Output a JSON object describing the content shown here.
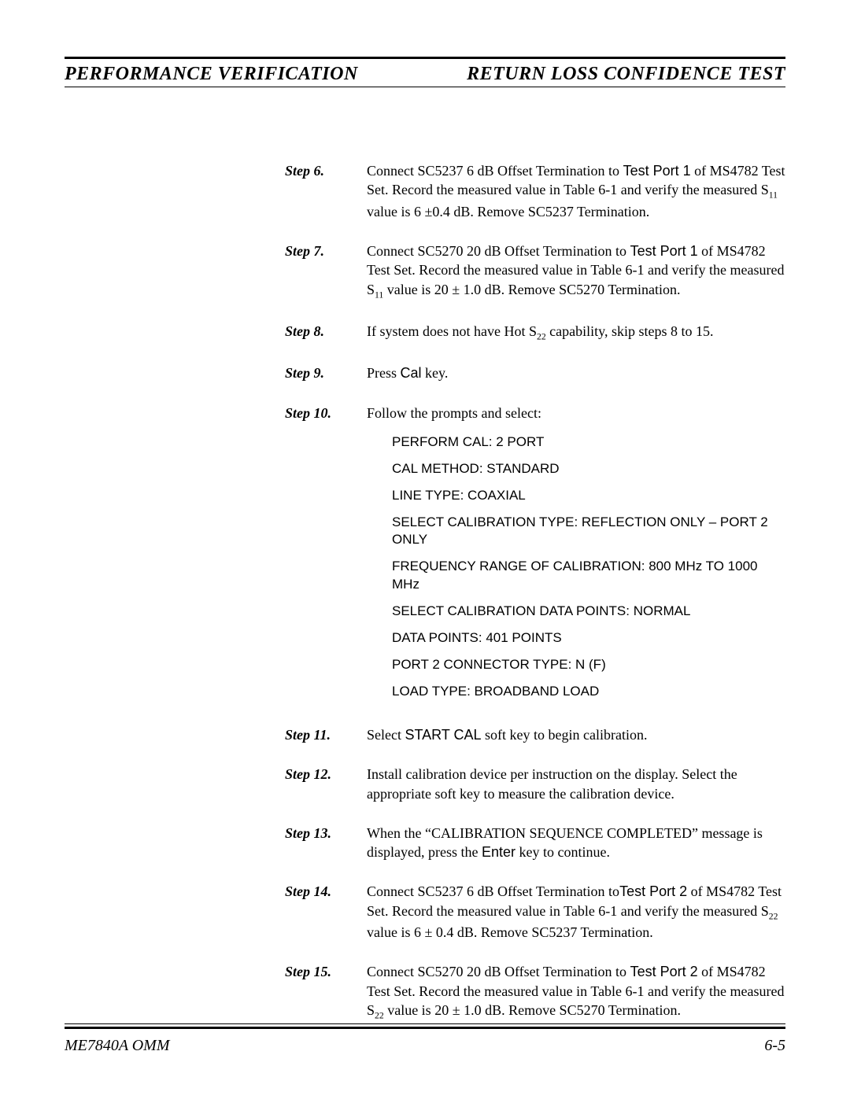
{
  "header": {
    "left": "PERFORMANCE VERIFICATION",
    "right": "RETURN LOSS CONFIDENCE TEST"
  },
  "steps": [
    {
      "label": "Step 6.",
      "segments": [
        {
          "t": "Connect SC5237 6 dB Offset Termination to "
        },
        {
          "t": "Test Port 1",
          "sans": true
        },
        {
          "t": " of MS4782 Test Set.  Record the measured value in Table 6-1 and verify the measured S"
        },
        {
          "t": "11",
          "sub": true
        },
        {
          "t": " value is 6 ±0.4 dB.  Remove SC5237 Termination."
        }
      ]
    },
    {
      "label": "Step 7.",
      "segments": [
        {
          "t": "Connect SC5270 20 dB Offset Termination to "
        },
        {
          "t": "Test Port 1",
          "sans": true
        },
        {
          "t": " of MS4782 Test Set.  Record the measured value in Table 6-1 and verify the measured S"
        },
        {
          "t": "11",
          "sub": true
        },
        {
          "t": " value is 20 ± 1.0 dB.  Remove SC5270 Termination."
        }
      ]
    },
    {
      "label": "Step 8.",
      "segments": [
        {
          "t": "If system does not have Hot S"
        },
        {
          "t": "22",
          "sub": true
        },
        {
          "t": " capability, skip steps  8 to 15."
        }
      ]
    },
    {
      "label": "Step 9.",
      "segments": [
        {
          "t": "Press "
        },
        {
          "t": "Cal",
          "sans": true
        },
        {
          "t": " key."
        }
      ]
    },
    {
      "label": "Step 10.",
      "segments": [
        {
          "t": "Follow the prompts and select:"
        }
      ],
      "cal_list": [
        "PERFORM CAL: 2 PORT",
        "CAL METHOD: STANDARD",
        "LINE TYPE: COAXIAL",
        "SELECT CALIBRATION TYPE: REFLECTION ONLY – PORT 2 ONLY",
        "FREQUENCY RANGE OF CALIBRATION: 800 MHz TO 1000 MHz",
        "SELECT CALIBRATION DATA POINTS: NORMAL",
        "DATA POINTS: 401 POINTS",
        "PORT 2 CONNECTOR TYPE: N (F)",
        "LOAD TYPE: BROADBAND LOAD"
      ]
    },
    {
      "label": "Step 11.",
      "segments": [
        {
          "t": "Select "
        },
        {
          "t": "START CAL",
          "sans": true
        },
        {
          "t": " soft key to begin calibration."
        }
      ]
    },
    {
      "label": "Step 12.",
      "segments": [
        {
          "t": "Install calibration device per instruction on the display. Select the appropriate soft key to measure the calibration device."
        }
      ]
    },
    {
      "label": "Step 13.",
      "segments": [
        {
          "t": "When the “CALIBRATION SEQUENCE COMPLETED” message is displayed, press the "
        },
        {
          "t": "Enter",
          "sans": true
        },
        {
          "t": " key to continue."
        }
      ]
    },
    {
      "label": "Step 14.",
      "segments": [
        {
          "t": "Connect SC5237 6 dB Offset Termination to"
        },
        {
          "t": "Test  Port 2",
          "sans": true
        },
        {
          "t": " of MS4782 Test Set.  Record the measured value in Table 6-1 and verify the measured S"
        },
        {
          "t": "22",
          "sub": true
        },
        {
          "t": " value is 6 ± 0.4 dB.  Remove SC5237 Termination."
        }
      ]
    },
    {
      "label": "Step 15.",
      "segments": [
        {
          "t": "Connect SC5270 20 dB Offset Termination to "
        },
        {
          "t": "Test Port 2",
          "sans": true
        },
        {
          "t": " of MS4782 Test Set.  Record the measured value in Table 6-1 and verify the measured S"
        },
        {
          "t": "22",
          "sub": true
        },
        {
          "t": " value is 20 ± 1.0 dB.  Remove SC5270 Termination."
        }
      ]
    }
  ],
  "footer": {
    "left": "ME7840A OMM",
    "right": "6-5"
  }
}
